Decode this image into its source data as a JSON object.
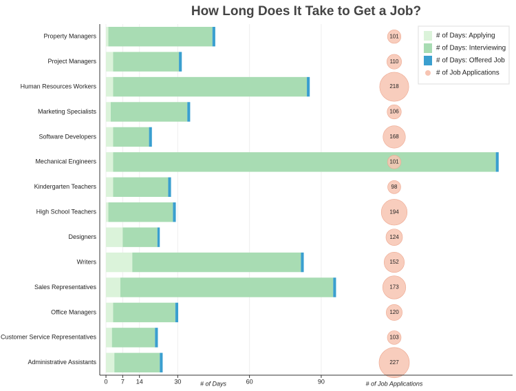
{
  "chart_data": {
    "type": "stacked_barh_bubble",
    "title": "How Long Does It Take to Get a Job?",
    "xlabel": "# of Days",
    "bubble_label": "# of Job Applications",
    "categories": [
      "Property Managers",
      "Project Managers",
      "Human Resources Workers",
      "Marketing Specialists",
      "Software Developers",
      "Mechanical Engineers",
      "Kindergarten Teachers",
      "High School Teachers",
      "Designers",
      "Writers",
      "Sales Representatives",
      "Office Managers",
      "Customer Service Representatives",
      "Administrative Assistants"
    ],
    "series": [
      {
        "name": "# of Days: Applying",
        "color": "#dbf3da",
        "values": [
          1,
          3,
          3,
          2,
          3,
          3,
          3,
          1,
          7,
          11,
          6,
          3,
          2.5,
          3.5
        ]
      },
      {
        "name": "# of Days: Interviewing",
        "color": "#a8dcb3",
        "values": [
          43.5,
          27.5,
          81,
          32,
          15,
          160,
          23,
          27,
          14.5,
          70.5,
          89,
          26,
          18,
          19
        ]
      },
      {
        "name": "# of Days: Offered Job",
        "color": "#3a9fcf",
        "values": [
          1.2,
          1.2,
          1.2,
          1.2,
          1.2,
          1.2,
          1.2,
          1.2,
          1,
          1.2,
          1.2,
          1.2,
          1.2,
          1.2
        ]
      }
    ],
    "bubbles": {
      "name": "# of Job Applications",
      "color": "#f7c4b2",
      "values": [
        101,
        110,
        218,
        106,
        168,
        101,
        98,
        194,
        124,
        152,
        173,
        120,
        103,
        227
      ]
    },
    "xlim": [
      -2.6,
      170
    ],
    "xticks": [
      0,
      7,
      14,
      30,
      60,
      90
    ],
    "grid": true,
    "legend": "top-right"
  }
}
